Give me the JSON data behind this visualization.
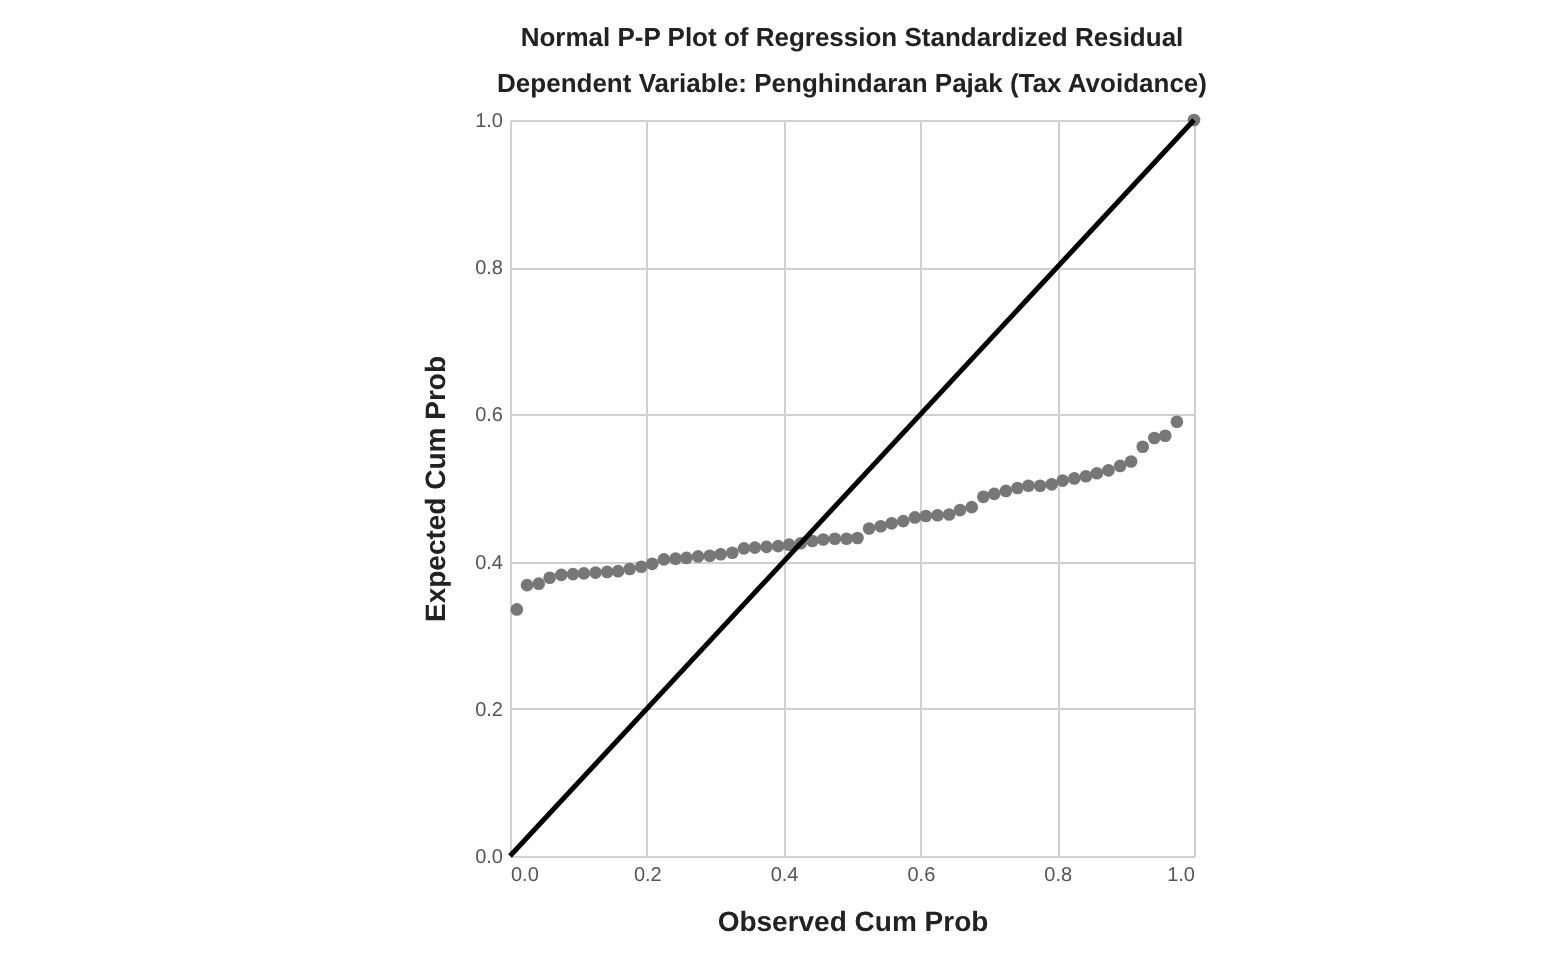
{
  "chart_data": {
    "type": "scatter",
    "title": "Normal P-P Plot of Regression Standardized Residual",
    "subtitle": "Dependent Variable: Penghindaran Pajak (Tax Avoidance)",
    "xlabel": "Observed Cum Prob",
    "ylabel": "Expected Cum Prob",
    "x": [
      0.01,
      0.025,
      0.042,
      0.058,
      0.075,
      0.092,
      0.108,
      0.125,
      0.142,
      0.158,
      0.175,
      0.192,
      0.208,
      0.225,
      0.242,
      0.258,
      0.275,
      0.292,
      0.308,
      0.325,
      0.342,
      0.358,
      0.375,
      0.392,
      0.408,
      0.425,
      0.442,
      0.458,
      0.475,
      0.492,
      0.508,
      0.525,
      0.542,
      0.558,
      0.575,
      0.592,
      0.608,
      0.625,
      0.642,
      0.658,
      0.675,
      0.692,
      0.708,
      0.725,
      0.742,
      0.758,
      0.775,
      0.792,
      0.808,
      0.825,
      0.842,
      0.858,
      0.875,
      0.892,
      0.908,
      0.925,
      0.942,
      0.958,
      0.975,
      1.0
    ],
    "series": [
      {
        "color": "#777777",
        "values": [
          0.335,
          0.368,
          0.37,
          0.378,
          0.382,
          0.383,
          0.384,
          0.385,
          0.386,
          0.387,
          0.39,
          0.393,
          0.397,
          0.403,
          0.404,
          0.405,
          0.407,
          0.408,
          0.41,
          0.412,
          0.418,
          0.419,
          0.42,
          0.421,
          0.423,
          0.425,
          0.428,
          0.43,
          0.431,
          0.431,
          0.432,
          0.445,
          0.448,
          0.452,
          0.455,
          0.46,
          0.462,
          0.463,
          0.464,
          0.47,
          0.474,
          0.488,
          0.492,
          0.496,
          0.5,
          0.503,
          0.503,
          0.505,
          0.51,
          0.513,
          0.516,
          0.52,
          0.524,
          0.53,
          0.536,
          0.556,
          0.568,
          0.571,
          0.59,
          1.0
        ]
      },
      {
        "type": "line",
        "marker": "none",
        "color": "#000000",
        "x": [
          0,
          1
        ],
        "values": [
          0,
          1
        ]
      }
    ],
    "xlim": [
      0,
      1
    ],
    "ylim": [
      0,
      1
    ],
    "xticks": [
      {
        "value": 0,
        "label": "0.0"
      },
      {
        "value": 0.2,
        "label": "0.2"
      },
      {
        "value": 0.4,
        "label": "0.4"
      },
      {
        "value": 0.6,
        "label": "0.6"
      },
      {
        "value": 0.8,
        "label": "0.8"
      },
      {
        "value": 1,
        "label": "1.0"
      }
    ],
    "yticks": [
      {
        "value": 0,
        "label": "0.0"
      },
      {
        "value": 0.2,
        "label": "0.2"
      },
      {
        "value": 0.4,
        "label": "0.4"
      },
      {
        "value": 0.6,
        "label": "0.6"
      },
      {
        "value": 0.8,
        "label": "0.8"
      },
      {
        "value": 1,
        "label": "1.0"
      }
    ],
    "grid": true,
    "marker": "circle"
  }
}
